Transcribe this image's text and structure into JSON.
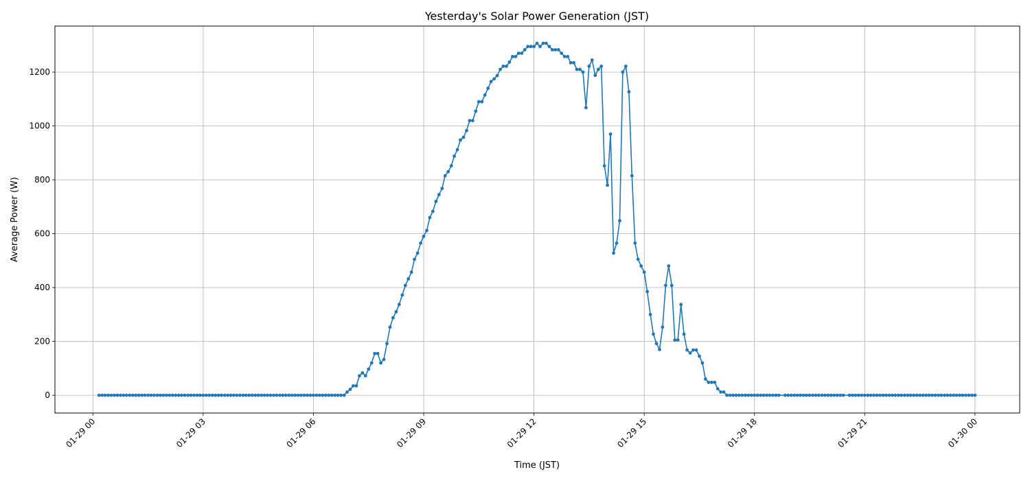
{
  "chart_data": {
    "type": "line",
    "title": "Yesterday's Solar Power Generation (JST)",
    "xlabel": "Time (JST)",
    "ylabel": "Average Power (W)",
    "date": "01-29",
    "xlim": [
      "01-28 22:58",
      "01-30 01:13"
    ],
    "ylim": [
      -66,
      1371
    ],
    "grid": true,
    "color": "#1f77b4",
    "marker": "circle",
    "x_ticks": [
      {
        "t": "01-29 00:00",
        "label": "01-29 00"
      },
      {
        "t": "01-29 03:00",
        "label": "01-29 03"
      },
      {
        "t": "01-29 06:00",
        "label": "01-29 06"
      },
      {
        "t": "01-29 09:00",
        "label": "01-29 09"
      },
      {
        "t": "01-29 12:00",
        "label": "01-29 12"
      },
      {
        "t": "01-29 15:00",
        "label": "01-29 15"
      },
      {
        "t": "01-29 18:00",
        "label": "01-29 18"
      },
      {
        "t": "01-29 21:00",
        "label": "01-29 21"
      },
      {
        "t": "01-30 00:00",
        "label": "01-30 00"
      }
    ],
    "y_ticks": [
      0,
      200,
      400,
      600,
      800,
      1000,
      1200
    ],
    "x": [
      "00:10",
      "00:15",
      "00:20",
      "00:25",
      "00:30",
      "00:35",
      "00:40",
      "00:45",
      "00:50",
      "00:55",
      "01:00",
      "01:05",
      "01:10",
      "01:15",
      "01:20",
      "01:25",
      "01:30",
      "01:35",
      "01:40",
      "01:45",
      "01:50",
      "01:55",
      "02:00",
      "02:05",
      "02:10",
      "02:15",
      "02:20",
      "02:25",
      "02:30",
      "02:35",
      "02:40",
      "02:45",
      "02:50",
      "02:55",
      "03:00",
      "03:05",
      "03:10",
      "03:15",
      "03:20",
      "03:25",
      "03:30",
      "03:35",
      "03:40",
      "03:45",
      "03:50",
      "03:55",
      "04:00",
      "04:05",
      "04:10",
      "04:15",
      "04:20",
      "04:25",
      "04:30",
      "04:35",
      "04:40",
      "04:45",
      "04:50",
      "04:55",
      "05:00",
      "05:05",
      "05:10",
      "05:15",
      "05:20",
      "05:25",
      "05:30",
      "05:35",
      "05:40",
      "05:45",
      "05:50",
      "05:55",
      "06:00",
      "06:05",
      "06:10",
      "06:15",
      "06:20",
      "06:25",
      "06:30",
      "06:35",
      "06:40",
      "06:45",
      "06:50",
      "06:55",
      "07:00",
      "07:05",
      "07:10",
      "07:15",
      "07:20",
      "07:25",
      "07:30",
      "07:35",
      "07:40",
      "07:45",
      "07:50",
      "07:55",
      "08:00",
      "08:05",
      "08:10",
      "08:15",
      "08:20",
      "08:25",
      "08:30",
      "08:35",
      "08:40",
      "08:45",
      "08:50",
      "08:55",
      "09:00",
      "09:05",
      "09:10",
      "09:15",
      "09:20",
      "09:25",
      "09:30",
      "09:35",
      "09:40",
      "09:45",
      "09:50",
      "09:55",
      "10:00",
      "10:05",
      "10:10",
      "10:15",
      "10:20",
      "10:25",
      "10:30",
      "10:35",
      "10:40",
      "10:45",
      "10:50",
      "10:55",
      "11:00",
      "11:05",
      "11:10",
      "11:15",
      "11:20",
      "11:25",
      "11:30",
      "11:35",
      "11:40",
      "11:45",
      "11:50",
      "11:55",
      "12:00",
      "12:05",
      "12:10",
      "12:15",
      "12:20",
      "12:25",
      "12:30",
      "12:35",
      "12:40",
      "12:45",
      "12:50",
      "12:55",
      "13:00",
      "13:05",
      "13:10",
      "13:15",
      "13:20",
      "13:25",
      "13:30",
      "13:35",
      "13:40",
      "13:45",
      "13:50",
      "13:55",
      "14:00",
      "14:05",
      "14:10",
      "14:15",
      "14:20",
      "14:25",
      "14:30",
      "14:35",
      "14:40",
      "14:45",
      "14:50",
      "14:55",
      "15:00",
      "15:05",
      "15:10",
      "15:15",
      "15:20",
      "15:25",
      "15:30",
      "15:35",
      "15:40",
      "15:45",
      "15:50",
      "15:55",
      "16:00",
      "16:05",
      "16:10",
      "16:15",
      "16:20",
      "16:25",
      "16:30",
      "16:35",
      "16:40",
      "16:45",
      "16:50",
      "16:55",
      "17:00",
      "17:05",
      "17:10",
      "17:15",
      "17:20",
      "17:25",
      "17:30",
      "17:35",
      "17:40",
      "17:45",
      "17:50",
      "17:55",
      "18:00",
      "18:05",
      "18:10",
      "18:15",
      "18:20",
      "18:25",
      "18:30",
      "18:35",
      "18:40",
      "18:50",
      "18:55",
      "19:00",
      "19:05",
      "19:10",
      "19:15",
      "19:20",
      "19:25",
      "19:30",
      "19:35",
      "19:40",
      "19:45",
      "19:50",
      "19:55",
      "20:00",
      "20:05",
      "20:10",
      "20:15",
      "20:20",
      "20:25",
      "20:35",
      "20:40",
      "20:45",
      "20:50",
      "20:55",
      "21:00",
      "21:05",
      "21:10",
      "21:15",
      "21:20",
      "21:25",
      "21:30",
      "21:35",
      "21:40",
      "21:45",
      "21:50",
      "21:55",
      "22:00",
      "22:05",
      "22:10",
      "22:15",
      "22:20",
      "22:25",
      "22:30",
      "22:35",
      "22:40",
      "22:45",
      "22:50",
      "22:55",
      "23:00",
      "23:05",
      "23:10",
      "23:15",
      "23:20",
      "23:25",
      "23:30",
      "23:35",
      "23:40",
      "23:45",
      "23:50",
      "23:55",
      "24:00"
    ],
    "y": [
      0,
      0,
      0,
      0,
      0,
      0,
      0,
      0,
      0,
      0,
      0,
      0,
      0,
      0,
      0,
      0,
      0,
      0,
      0,
      0,
      0,
      0,
      0,
      0,
      0,
      0,
      0,
      0,
      0,
      0,
      0,
      0,
      0,
      0,
      0,
      0,
      0,
      0,
      0,
      0,
      0,
      0,
      0,
      0,
      0,
      0,
      0,
      0,
      0,
      0,
      0,
      0,
      0,
      0,
      0,
      0,
      0,
      0,
      0,
      0,
      0,
      0,
      0,
      0,
      0,
      0,
      0,
      0,
      0,
      0,
      0,
      0,
      0,
      0,
      0,
      0,
      0,
      0,
      0,
      0,
      0,
      12,
      22,
      35,
      35,
      72,
      83,
      72,
      97,
      120,
      155,
      155,
      120,
      133,
      192,
      253,
      288,
      310,
      337,
      372,
      408,
      432,
      457,
      505,
      528,
      565,
      590,
      612,
      660,
      683,
      720,
      745,
      768,
      815,
      830,
      852,
      888,
      912,
      948,
      958,
      983,
      1020,
      1020,
      1055,
      1090,
      1090,
      1115,
      1140,
      1165,
      1175,
      1187,
      1210,
      1222,
      1222,
      1237,
      1258,
      1258,
      1270,
      1270,
      1283,
      1295,
      1295,
      1295,
      1307,
      1295,
      1307,
      1307,
      1295,
      1283,
      1283,
      1283,
      1270,
      1258,
      1258,
      1235,
      1235,
      1210,
      1210,
      1200,
      1068,
      1222,
      1245,
      1188,
      1210,
      1222,
      852,
      780,
      970,
      528,
      565,
      648,
      1200,
      1222,
      1127,
      815,
      565,
      505,
      480,
      457,
      385,
      300,
      227,
      192,
      170,
      253,
      408,
      480,
      408,
      205,
      205,
      337,
      227,
      168,
      157,
      168,
      168,
      145,
      120,
      60,
      48,
      48,
      48,
      24,
      12,
      12,
      0,
      0,
      0,
      0,
      0,
      0,
      0,
      0,
      0,
      0,
      0,
      0,
      0,
      0,
      0,
      0,
      0,
      0,
      0,
      0,
      0,
      0,
      0,
      0,
      0,
      0,
      0,
      0,
      0,
      0,
      0,
      0,
      0,
      0,
      0,
      0,
      0,
      0,
      0,
      0,
      0,
      0,
      0,
      0,
      0,
      0,
      0,
      0,
      0,
      0,
      0,
      0,
      0,
      0,
      0,
      0,
      0,
      0,
      0,
      0,
      0,
      0,
      0,
      0,
      0,
      0,
      0,
      0,
      0,
      0,
      0,
      0,
      0,
      0,
      0,
      0,
      0,
      0,
      0,
      0
    ]
  }
}
